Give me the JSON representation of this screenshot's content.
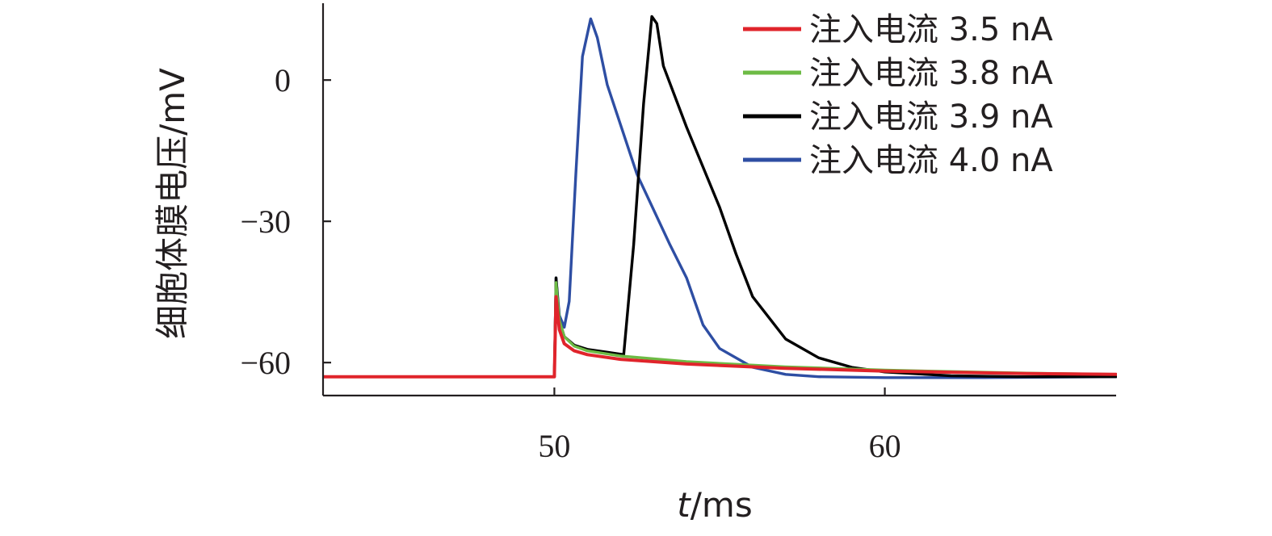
{
  "chart_data": {
    "type": "line",
    "title": "",
    "xlabel_var": "t",
    "xlabel_unit": "/ms",
    "ylabel": "细胞体膜电压/mV",
    "xlim": [
      43,
      67
    ],
    "ylim": [
      -67,
      17
    ],
    "xticks": [
      50,
      60
    ],
    "yticks": [
      0,
      -30,
      -60
    ],
    "ytick_labels": [
      "0",
      "−30",
      "−60"
    ],
    "grid": false,
    "legend_position": "top-right",
    "series": [
      {
        "name": "注入电流 3.5 nA",
        "color": "#e0242b",
        "x": [
          43,
          50,
          50.05,
          50.15,
          50.3,
          50.6,
          51.0,
          52.0,
          54.0,
          57.0,
          60.0,
          64.0,
          67.0
        ],
        "y": [
          -63,
          -63,
          -46,
          -53,
          -56,
          -57.5,
          -58.3,
          -59.3,
          -60.3,
          -61.2,
          -61.8,
          -62.3,
          -62.5
        ]
      },
      {
        "name": "注入电流 3.8 nA",
        "color": "#6dbb45",
        "x": [
          43,
          50,
          50.05,
          50.15,
          50.3,
          50.6,
          51.0,
          52.0,
          54.0,
          57.0,
          60.0,
          64.0,
          67.0
        ],
        "y": [
          -63,
          -63,
          -43,
          -51,
          -54.5,
          -56.5,
          -57.5,
          -58.6,
          -59.8,
          -60.9,
          -61.6,
          -62.2,
          -62.5
        ]
      },
      {
        "name": "注入电流 3.9 nA",
        "color": "#000000",
        "x": [
          43,
          50,
          50.05,
          50.15,
          50.3,
          50.6,
          51.0,
          51.6,
          52.1,
          52.4,
          52.7,
          52.95,
          53.1,
          53.3,
          54.0,
          55.0,
          55.5,
          56.0,
          57.0,
          58.0,
          59.0,
          60.0,
          62.0,
          64.0,
          67.0
        ],
        "y": [
          -63,
          -63,
          -42,
          -51,
          -54.5,
          -56.3,
          -57.2,
          -57.8,
          -58.3,
          -35,
          -5,
          13.5,
          12,
          3,
          -10,
          -27,
          -37,
          -46,
          -55,
          -59,
          -61,
          -62,
          -62.8,
          -63,
          -63
        ]
      },
      {
        "name": "注入电流 4.0 nA",
        "color": "#2e4ea3",
        "x": [
          43,
          50,
          50.05,
          50.15,
          50.3,
          50.45,
          50.65,
          50.85,
          51.1,
          51.3,
          51.6,
          52.5,
          53.5,
          54.0,
          54.5,
          55.0,
          56.0,
          57.0,
          58.0,
          60.0,
          63.0,
          67.0
        ],
        "y": [
          -63,
          -63,
          -42,
          -50,
          -52.5,
          -47,
          -20,
          5,
          13,
          9,
          -1,
          -20,
          -35,
          -42,
          -52,
          -57,
          -61,
          -62.5,
          -63,
          -63.2,
          -63.2,
          -63
        ]
      }
    ]
  }
}
